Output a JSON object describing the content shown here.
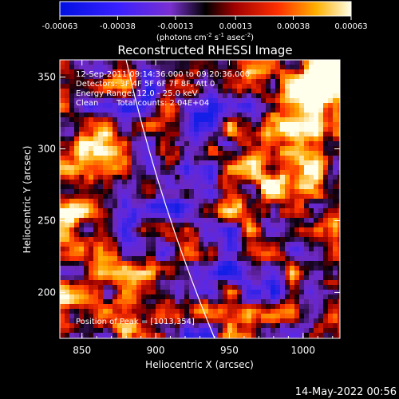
{
  "colorbar": {
    "ticks": [
      "-0.00063",
      "-0.00038",
      "-0.00013",
      "0.00013",
      "0.00038",
      "0.00063"
    ],
    "tick_values": [
      -0.00063,
      -0.00038,
      -0.00013,
      0.00013,
      0.00038,
      0.00063
    ],
    "range": [
      -0.00063,
      0.00063
    ],
    "units": "(photons cm",
    "units_exp1": "-2",
    "units_mid": " s",
    "units_exp2": "-1",
    "units_end": " asec",
    "units_exp3": "-2",
    "units_close": ")"
  },
  "chart_data": {
    "type": "heatmap",
    "title": "Reconstructed RHESSI Image",
    "xlabel": "Heliocentric X (arcsec)",
    "ylabel": "Heliocentric Y (arcsec)",
    "xlim": [
      835,
      1025
    ],
    "ylim": [
      168,
      362
    ],
    "xticks": [
      850,
      900,
      950,
      1000
    ],
    "yticks": [
      200,
      250,
      300,
      350
    ],
    "annotations": {
      "time": "12-Sep-2011 09:14:36.000 to 09:20:36.000",
      "detectors": "Detectors: 3F 4F 5F 6F 7F 8F, Att 0",
      "energy": "Energy Range: 12.0 - 25.0 keV",
      "clean": "Clean",
      "counts": "Total counts: 2.04E+04",
      "peak": "Position of Peak = [1013,354]"
    },
    "peak": [
      1013,
      354
    ],
    "limb": {
      "x_top": 880,
      "y_top": 362,
      "x_bottom": 940,
      "y_bottom": 168
    }
  },
  "footer_date": "14-May-2022 00:56"
}
